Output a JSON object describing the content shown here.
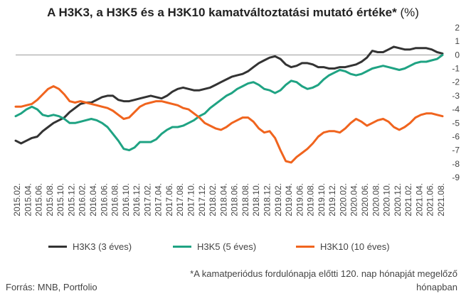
{
  "title_bold": "A H3K3, a H3K5 és a H3K10 kamatváltoztatási mutató értéke*",
  "title_unit": " (%)",
  "source": "Forrás: MNB, Portfolio",
  "footnote_line1": "*A kamatperiódus fordulónapja előtti 120. nap hónapját megelőző",
  "footnote_line2": "hónapban",
  "chart_data": {
    "type": "line",
    "title": "A H3K3, a H3K5 és a H3K10 kamatváltoztatási mutató értéke* (%)",
    "ylim": [
      -9,
      2
    ],
    "yticks": [
      2,
      1,
      0,
      -1,
      -2,
      -3,
      -4,
      -5,
      -6,
      -7,
      -8,
      -9
    ],
    "x_tick_labels": [
      "2015.02.",
      "2015.04.",
      "2015.06.",
      "2015.08.",
      "2015.10.",
      "2015.12.",
      "2016.02.",
      "2016.04.",
      "2016.06.",
      "2016.08.",
      "2016.10.",
      "2016.12.",
      "2017.02.",
      "2017.04.",
      "2017.06.",
      "2017.08.",
      "2017.10.",
      "2017.12.",
      "2018.02.",
      "2018.04.",
      "2018.06.",
      "2018.08.",
      "2018.10.",
      "2018.12.",
      "2019.02.",
      "2019.04.",
      "2019.06.",
      "2019.08.",
      "2019.10.",
      "2019.12.",
      "2020.02.",
      "2020.04.",
      "2020.06.",
      "2020.08.",
      "2020.10.",
      "2020.12.",
      "2021.02.",
      "2021.04.",
      "2021.06.",
      "2021.08."
    ],
    "legend_position": "bottom",
    "series": [
      {
        "name": "H3K3 (3 éves)",
        "color": "#333333",
        "values": [
          -6.3,
          -6.5,
          -6.3,
          -6.1,
          -6.0,
          -5.6,
          -5.3,
          -5.0,
          -4.8,
          -4.6,
          -4.2,
          -3.9,
          -3.6,
          -3.5,
          -3.5,
          -3.3,
          -3.1,
          -3.0,
          -3.0,
          -3.3,
          -3.4,
          -3.4,
          -3.3,
          -3.2,
          -3.1,
          -3.0,
          -3.1,
          -3.2,
          -3.0,
          -2.7,
          -2.5,
          -2.4,
          -2.5,
          -2.6,
          -2.6,
          -2.5,
          -2.4,
          -2.2,
          -2.0,
          -1.8,
          -1.6,
          -1.5,
          -1.4,
          -1.2,
          -0.9,
          -0.6,
          -0.4,
          -0.2,
          -0.1,
          -0.3,
          -0.7,
          -0.9,
          -0.8,
          -0.6,
          -0.6,
          -0.7,
          -0.9,
          -0.9,
          -1.0,
          -1.0,
          -0.9,
          -0.9,
          -0.8,
          -0.7,
          -0.5,
          -0.2,
          0.3,
          0.2,
          0.2,
          0.4,
          0.6,
          0.5,
          0.4,
          0.4,
          0.5,
          0.5,
          0.5,
          0.4,
          0.2,
          0.1
        ]
      },
      {
        "name": "H3K5 (5 éves)",
        "color": "#1fa383",
        "values": [
          -4.5,
          -4.3,
          -4.0,
          -3.8,
          -4.0,
          -4.4,
          -4.5,
          -4.4,
          -4.5,
          -4.7,
          -5.0,
          -5.0,
          -4.9,
          -4.8,
          -4.7,
          -4.8,
          -5.0,
          -5.3,
          -5.8,
          -6.3,
          -6.9,
          -7.0,
          -6.8,
          -6.4,
          -6.4,
          -6.4,
          -6.2,
          -5.8,
          -5.5,
          -5.3,
          -5.3,
          -5.2,
          -5.0,
          -4.8,
          -4.5,
          -4.3,
          -3.9,
          -3.6,
          -3.3,
          -3.0,
          -2.8,
          -2.5,
          -2.3,
          -2.1,
          -2.0,
          -2.2,
          -2.5,
          -2.6,
          -2.8,
          -2.6,
          -2.2,
          -1.9,
          -2.0,
          -2.3,
          -2.5,
          -2.4,
          -2.2,
          -1.8,
          -1.5,
          -1.3,
          -1.1,
          -1.2,
          -1.4,
          -1.5,
          -1.4,
          -1.2,
          -1.0,
          -0.9,
          -0.8,
          -0.9,
          -1.0,
          -1.1,
          -1.0,
          -0.8,
          -0.6,
          -0.5,
          -0.5,
          -0.4,
          -0.3,
          0.0
        ]
      },
      {
        "name": "H3K10 (10 éves)",
        "color": "#f0641e",
        "values": [
          -3.8,
          -3.8,
          -3.7,
          -3.6,
          -3.3,
          -2.9,
          -2.5,
          -2.3,
          -2.5,
          -2.9,
          -3.4,
          -3.5,
          -3.4,
          -3.5,
          -3.6,
          -3.7,
          -3.8,
          -3.9,
          -4.1,
          -4.4,
          -4.7,
          -4.6,
          -4.2,
          -3.8,
          -3.6,
          -3.5,
          -3.4,
          -3.4,
          -3.5,
          -3.6,
          -3.7,
          -3.9,
          -4.0,
          -4.3,
          -4.6,
          -5.0,
          -5.2,
          -5.4,
          -5.5,
          -5.3,
          -5.0,
          -4.8,
          -4.6,
          -4.6,
          -4.9,
          -5.4,
          -5.7,
          -5.6,
          -6.1,
          -7.0,
          -7.8,
          -7.9,
          -7.5,
          -7.2,
          -6.9,
          -6.5,
          -6.0,
          -5.7,
          -5.6,
          -5.6,
          -5.7,
          -5.4,
          -5.0,
          -4.7,
          -4.9,
          -5.2,
          -5.0,
          -4.8,
          -4.7,
          -4.9,
          -5.3,
          -5.5,
          -5.3,
          -5.0,
          -4.6,
          -4.4,
          -4.3,
          -4.3,
          -4.4,
          -4.5
        ]
      }
    ]
  }
}
